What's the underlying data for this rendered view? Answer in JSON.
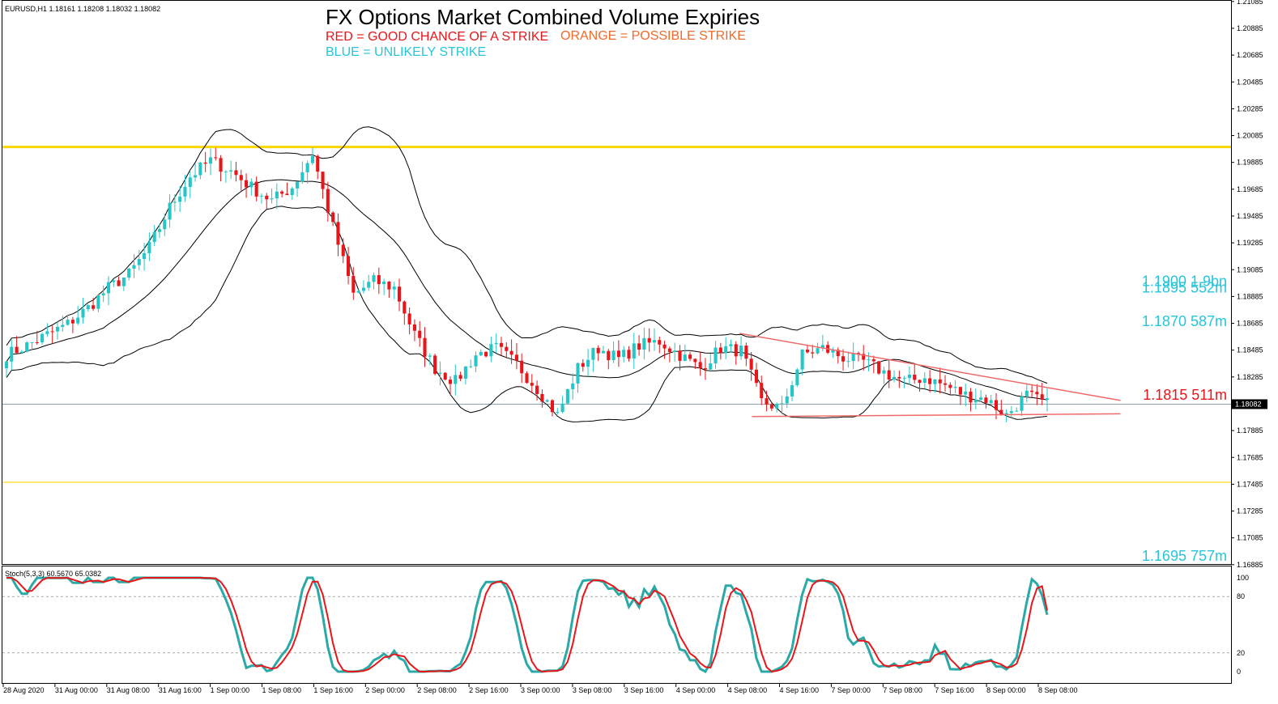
{
  "symbol_info": "EURUSD,H1  1.18161 1.18208 1.18032 1.18082",
  "title": "FX Options Market Combined Volume Expiries",
  "legend": {
    "red": "RED = GOOD CHANCE OF A STRIKE",
    "orange": "ORANGE = POSSIBLE STRIKE",
    "blue": "BLUE = UNLIKELY STRIKE"
  },
  "colors": {
    "bull": "#26c6c6",
    "bear": "#e8161a",
    "bands": "#000000",
    "level_line": "#ffd700",
    "trendline": "#f06a6a",
    "stoch_main": "#2aa9a6",
    "stoch_signal": "#e8161a",
    "annotation_blue": "#26c6da",
    "annotation_red": "#e8161a",
    "annotation_orange": "#f26a2a",
    "current_price_line": "#8fa0b4",
    "price_tag_bg": "#000000"
  },
  "chart_data": {
    "type": "candlestick",
    "timeframe": "H1",
    "y_range": [
      1.1689,
      1.2109
    ],
    "y_ticks": [
      "1.21085",
      "1.20885",
      "1.20685",
      "1.20485",
      "1.20285",
      "1.20085",
      "1.19885",
      "1.19685",
      "1.19485",
      "1.19285",
      "1.19085",
      "1.18885",
      "1.18685",
      "1.18485",
      "1.18285",
      "1.18085",
      "1.17885",
      "1.17685",
      "1.17485",
      "1.17285",
      "1.17085",
      "1.16885"
    ],
    "x_labels": [
      "28 Aug 2020",
      "31 Aug 00:00",
      "31 Aug 08:00",
      "31 Aug 16:00",
      "1 Sep 00:00",
      "1 Sep 08:00",
      "1 Sep 16:00",
      "2 Sep 00:00",
      "2 Sep 08:00",
      "2 Sep 16:00",
      "3 Sep 00:00",
      "3 Sep 08:00",
      "3 Sep 16:00",
      "4 Sep 00:00",
      "4 Sep 08:00",
      "4 Sep 16:00",
      "7 Sep 00:00",
      "7 Sep 08:00",
      "7 Sep 16:00",
      "8 Sep 00:00",
      "8 Sep 08:00"
    ],
    "close_path": [
      1.1845,
      1.1852,
      1.186,
      1.1868,
      1.188,
      1.1895,
      1.1905,
      1.1925,
      1.1955,
      1.1978,
      1.199,
      1.1982,
      1.197,
      1.196,
      1.197,
      1.1995,
      1.194,
      1.189,
      1.19,
      1.1895,
      1.186,
      1.1835,
      1.1825,
      1.1845,
      1.185,
      1.1838,
      1.182,
      1.18,
      1.1835,
      1.185,
      1.1842,
      1.1852,
      1.1855,
      1.1845,
      1.1835,
      1.185,
      1.1848,
      1.181,
      1.1805,
      1.1845,
      1.185,
      1.1843,
      1.184,
      1.1832,
      1.1825,
      1.1828,
      1.1822,
      1.1815,
      1.1812,
      1.18,
      1.1815,
      1.1808
    ],
    "current_price": 1.18082,
    "current_price_label": "1.18082",
    "horizontal_levels": [
      {
        "price": 1.2,
        "style": "thick"
      },
      {
        "price": 1.175,
        "style": "thin"
      }
    ],
    "wedge_upper": [
      {
        "x": 0.6,
        "price": 1.1861
      },
      {
        "x": 0.91,
        "price": 1.1811
      }
    ],
    "wedge_lower": [
      {
        "x": 0.61,
        "price": 1.1799
      },
      {
        "x": 0.91,
        "price": 1.1801
      }
    ],
    "expiries": [
      {
        "label": "1.1900 1.9bn",
        "price": 1.19,
        "color_class": "blue"
      },
      {
        "label": "1.1895 552m",
        "price": 1.1895,
        "color_class": "blue"
      },
      {
        "label": "1.1870 587m",
        "price": 1.187,
        "color_class": "blue"
      },
      {
        "label": "1.1815 511m",
        "price": 1.1815,
        "color_class": "red"
      },
      {
        "label": "1.1695 757m",
        "price": 1.1695,
        "color_class": "blue"
      }
    ],
    "stochastic": {
      "label": "Stoch(5,3,3) 60.5670 65.0382",
      "y_range": [
        0,
        100
      ],
      "y_ticks": [
        "100",
        "80",
        "20",
        "0"
      ],
      "levels": [
        80,
        20
      ],
      "main": 60.567,
      "signal": 65.0382
    }
  }
}
